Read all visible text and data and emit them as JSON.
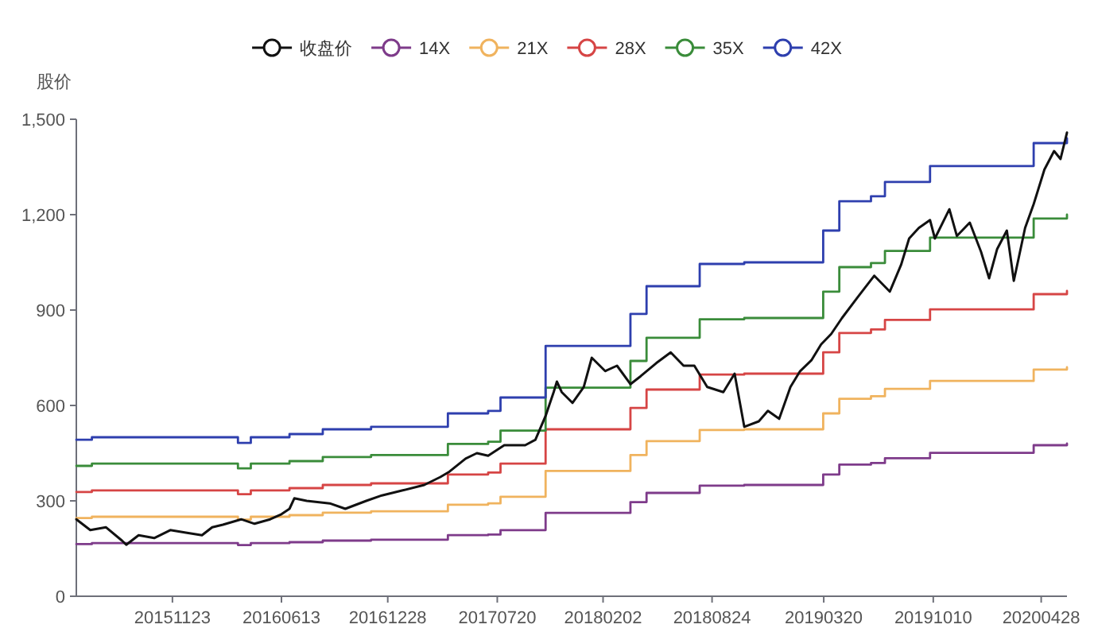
{
  "chart_data": {
    "type": "line",
    "ylabel": "股价",
    "legend": "top",
    "xlim": [
      "2015-05-28",
      "2020-06-15"
    ],
    "xticks": [
      {
        "value": "2015-11-23",
        "label": "20151123"
      },
      {
        "value": "2016-06-13",
        "label": "20160613"
      },
      {
        "value": "2016-12-28",
        "label": "20161228"
      },
      {
        "value": "2017-07-20",
        "label": "20170720"
      },
      {
        "value": "2018-02-02",
        "label": "20180202"
      },
      {
        "value": "2018-08-24",
        "label": "20180824"
      },
      {
        "value": "2019-03-20",
        "label": "20190320"
      },
      {
        "value": "2019-10-10",
        "label": "20191010"
      },
      {
        "value": "2020-04-28",
        "label": "20200428"
      }
    ],
    "ylim": [
      0,
      1500
    ],
    "yticks": [
      0,
      300,
      600,
      900,
      {
        "value": 1200,
        "label": "1,200"
      },
      {
        "value": 1500,
        "label": "1,500"
      }
    ],
    "series": [
      {
        "name": "收盘价",
        "type": "line",
        "color": "#111111",
        "x": [
          "2015-05-28",
          "2015-06-23",
          "2015-07-22",
          "2015-08-21",
          "2015-08-29",
          "2015-09-21",
          "2015-10-20",
          "2015-11-19",
          "2015-12-18",
          "2016-01-17",
          "2016-02-05",
          "2016-02-25",
          "2016-03-30",
          "2016-04-24",
          "2016-05-23",
          "2016-06-13",
          "2016-06-28",
          "2016-07-07",
          "2016-07-30",
          "2016-09-11",
          "2016-10-10",
          "2016-11-18",
          "2016-12-17",
          "2017-01-25",
          "2017-03-06",
          "2017-04-05",
          "2017-04-22",
          "2017-05-22",
          "2017-06-12",
          "2017-07-03",
          "2017-08-02",
          "2017-09-10",
          "2017-09-29",
          "2017-10-18",
          "2017-11-02",
          "2017-11-08",
          "2017-11-17",
          "2017-12-07",
          "2017-12-28",
          "2018-01-12",
          "2018-02-06",
          "2018-02-28",
          "2018-03-25",
          "2018-04-13",
          "2018-05-12",
          "2018-06-08",
          "2018-07-02",
          "2018-07-22",
          "2018-08-15",
          "2018-09-14",
          "2018-10-05",
          "2018-10-23",
          "2018-11-19",
          "2018-12-06",
          "2018-12-27",
          "2019-01-17",
          "2019-02-04",
          "2019-02-25",
          "2019-03-15",
          "2019-04-03",
          "2019-04-23",
          "2019-05-23",
          "2019-06-22",
          "2019-07-21",
          "2019-08-11",
          "2019-08-26",
          "2019-09-13",
          "2019-10-04",
          "2019-10-13",
          "2019-11-09",
          "2019-11-23",
          "2019-12-17",
          "2020-01-07",
          "2020-01-22",
          "2020-02-06",
          "2020-02-24",
          "2020-03-08",
          "2020-03-29",
          "2020-04-14",
          "2020-05-04",
          "2020-05-22",
          "2020-06-03",
          "2020-06-15"
        ],
        "values": [
          242,
          208,
          217,
          175,
          162,
          192,
          183,
          208,
          200,
          192,
          217,
          225,
          242,
          228,
          242,
          258,
          275,
          308,
          300,
          292,
          275,
          300,
          317,
          333,
          350,
          375,
          392,
          433,
          450,
          442,
          475,
          475,
          492,
          567,
          642,
          675,
          642,
          608,
          658,
          750,
          708,
          725,
          667,
          692,
          733,
          767,
          725,
          725,
          658,
          642,
          700,
          533,
          550,
          583,
          558,
          658,
          708,
          742,
          792,
          825,
          875,
          942,
          1008,
          958,
          1042,
          1125,
          1158,
          1183,
          1125,
          1217,
          1133,
          1175,
          1083,
          1000,
          1092,
          1150,
          992,
          1158,
          1233,
          1342,
          1400,
          1375,
          1458
        ]
      },
      {
        "name": "14X",
        "type": "step",
        "color": "#7e3b8a",
        "x": [
          "2015-05-28",
          "2015-06-26",
          "2016-03-24",
          "2016-04-17",
          "2016-06-28",
          "2016-08-29",
          "2016-11-27",
          "2017-04-19",
          "2017-07-03",
          "2017-07-26",
          "2017-10-18",
          "2018-03-25",
          "2018-04-24",
          "2018-08-01",
          "2018-10-23",
          "2019-03-19",
          "2019-04-18",
          "2019-06-16",
          "2019-07-12",
          "2019-10-04",
          "2020-04-14",
          "2020-06-15"
        ],
        "values": [
          164,
          167,
          161,
          167,
          170,
          175,
          178,
          192,
          194,
          208,
          262,
          296,
          325,
          348,
          350,
          383,
          414,
          419,
          434,
          451,
          475,
          480
        ]
      },
      {
        "name": "21X",
        "type": "step",
        "color": "#f0b35e",
        "x": [
          "2015-05-28",
          "2015-06-26",
          "2016-03-24",
          "2016-04-17",
          "2016-06-28",
          "2016-08-29",
          "2016-11-27",
          "2017-04-19",
          "2017-07-03",
          "2017-07-26",
          "2017-10-18",
          "2018-03-25",
          "2018-04-24",
          "2018-08-01",
          "2018-10-23",
          "2019-03-19",
          "2019-04-18",
          "2019-06-16",
          "2019-07-12",
          "2019-10-04",
          "2020-04-14",
          "2020-06-15"
        ],
        "values": [
          246,
          250,
          241,
          250,
          255,
          263,
          267,
          288,
          292,
          313,
          394,
          444,
          488,
          523,
          525,
          575,
          621,
          629,
          652,
          677,
          713,
          720
        ]
      },
      {
        "name": "28X",
        "type": "step",
        "color": "#d64545",
        "x": [
          "2015-05-28",
          "2015-06-26",
          "2016-03-24",
          "2016-04-17",
          "2016-06-28",
          "2016-08-29",
          "2016-11-27",
          "2017-04-19",
          "2017-07-03",
          "2017-07-26",
          "2017-10-18",
          "2018-03-25",
          "2018-04-24",
          "2018-08-01",
          "2018-10-23",
          "2019-03-19",
          "2019-04-18",
          "2019-06-16",
          "2019-07-12",
          "2019-10-04",
          "2020-04-14",
          "2020-06-15"
        ],
        "values": [
          328,
          333,
          321,
          333,
          340,
          350,
          355,
          383,
          389,
          417,
          525,
          592,
          650,
          697,
          700,
          767,
          828,
          839,
          869,
          902,
          950,
          960
        ]
      },
      {
        "name": "35X",
        "type": "step",
        "color": "#3a8c3a",
        "x": [
          "2015-05-28",
          "2015-06-26",
          "2016-03-24",
          "2016-04-17",
          "2016-06-28",
          "2016-08-29",
          "2016-11-27",
          "2017-04-19",
          "2017-07-03",
          "2017-07-26",
          "2017-10-18",
          "2018-03-25",
          "2018-04-24",
          "2018-08-01",
          "2018-10-23",
          "2019-03-19",
          "2019-04-18",
          "2019-06-16",
          "2019-07-12",
          "2019-10-04",
          "2020-04-14",
          "2020-06-15"
        ],
        "values": [
          410,
          417,
          402,
          417,
          425,
          438,
          444,
          479,
          486,
          521,
          656,
          740,
          813,
          871,
          875,
          958,
          1035,
          1048,
          1086,
          1128,
          1188,
          1200
        ]
      },
      {
        "name": "42X",
        "type": "step",
        "color": "#2e3fae",
        "x": [
          "2015-05-28",
          "2015-06-26",
          "2016-03-24",
          "2016-04-17",
          "2016-06-28",
          "2016-08-29",
          "2016-11-27",
          "2017-04-19",
          "2017-07-03",
          "2017-07-26",
          "2017-10-18",
          "2018-03-25",
          "2018-04-24",
          "2018-08-01",
          "2018-10-23",
          "2019-03-19",
          "2019-04-18",
          "2019-06-16",
          "2019-07-12",
          "2019-10-04",
          "2020-04-14",
          "2020-06-15"
        ],
        "values": [
          492,
          500,
          482,
          500,
          510,
          525,
          533,
          575,
          583,
          625,
          787,
          888,
          975,
          1045,
          1050,
          1150,
          1242,
          1258,
          1303,
          1353,
          1425,
          1440
        ]
      }
    ]
  }
}
